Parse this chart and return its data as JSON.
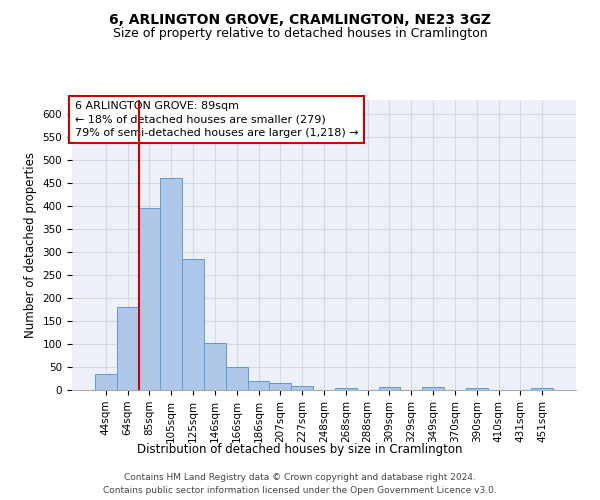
{
  "title": "6, ARLINGTON GROVE, CRAMLINGTON, NE23 3GZ",
  "subtitle": "Size of property relative to detached houses in Cramlington",
  "xlabel": "Distribution of detached houses by size in Cramlington",
  "ylabel": "Number of detached properties",
  "footer_line1": "Contains HM Land Registry data © Crown copyright and database right 2024.",
  "footer_line2": "Contains public sector information licensed under the Open Government Licence v3.0.",
  "bar_labels": [
    "44sqm",
    "64sqm",
    "85sqm",
    "105sqm",
    "125sqm",
    "146sqm",
    "166sqm",
    "186sqm",
    "207sqm",
    "227sqm",
    "248sqm",
    "268sqm",
    "288sqm",
    "309sqm",
    "329sqm",
    "349sqm",
    "370sqm",
    "390sqm",
    "410sqm",
    "431sqm",
    "451sqm"
  ],
  "bar_values": [
    35,
    180,
    395,
    460,
    285,
    103,
    50,
    20,
    15,
    8,
    0,
    5,
    0,
    6,
    0,
    6,
    0,
    5,
    0,
    0,
    5
  ],
  "bar_color": "#aec6e8",
  "bar_edge_color": "#5b9bd5",
  "grid_color": "#d0d8e8",
  "annotation_line1": "6 ARLINGTON GROVE: 89sqm",
  "annotation_line2": "← 18% of detached houses are smaller (279)",
  "annotation_line3": "79% of semi-detached houses are larger (1,218) →",
  "annotation_box_color": "#ffffff",
  "annotation_box_edge_color": "#cc0000",
  "vline_color": "#cc0000",
  "ylim": [
    0,
    630
  ],
  "yticks": [
    0,
    50,
    100,
    150,
    200,
    250,
    300,
    350,
    400,
    450,
    500,
    550,
    600
  ],
  "background_color": "#edf0f8",
  "title_fontsize": 10,
  "subtitle_fontsize": 9,
  "xlabel_fontsize": 8.5,
  "ylabel_fontsize": 8.5,
  "tick_fontsize": 7.5,
  "annotation_fontsize": 8,
  "footer_fontsize": 6.5
}
